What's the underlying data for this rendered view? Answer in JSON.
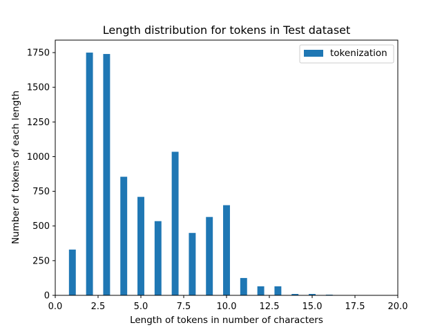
{
  "chart_data": {
    "type": "bar",
    "title": "Length distribution for tokens in Test dataset",
    "xlabel": "Length of tokens in number of characters",
    "ylabel": "Number of tokens of each length",
    "xlim": [
      0,
      20
    ],
    "ylim": [
      0,
      1840
    ],
    "xticks": [
      0,
      2.5,
      5,
      7.5,
      10,
      12.5,
      15,
      17.5,
      20
    ],
    "xtick_labels": [
      "0.0",
      "2.5",
      "5.0",
      "7.5",
      "10.0",
      "12.5",
      "15.0",
      "17.5",
      "20.0"
    ],
    "yticks": [
      0,
      250,
      500,
      750,
      1000,
      1250,
      1500,
      1750
    ],
    "ytick_labels": [
      "0",
      "250",
      "500",
      "750",
      "1000",
      "1250",
      "1500",
      "1750"
    ],
    "bar_width": 0.4,
    "grid": false,
    "legend_position": "top-right",
    "series": [
      {
        "name": "tokenization",
        "color": "#1f77b4",
        "x": [
          1,
          2,
          3,
          4,
          5,
          6,
          7,
          8,
          9,
          10,
          11,
          12,
          13,
          14,
          15,
          16
        ],
        "values": [
          330,
          1750,
          1740,
          855,
          710,
          535,
          1035,
          450,
          565,
          650,
          125,
          65,
          65,
          10,
          10,
          5
        ]
      }
    ]
  }
}
